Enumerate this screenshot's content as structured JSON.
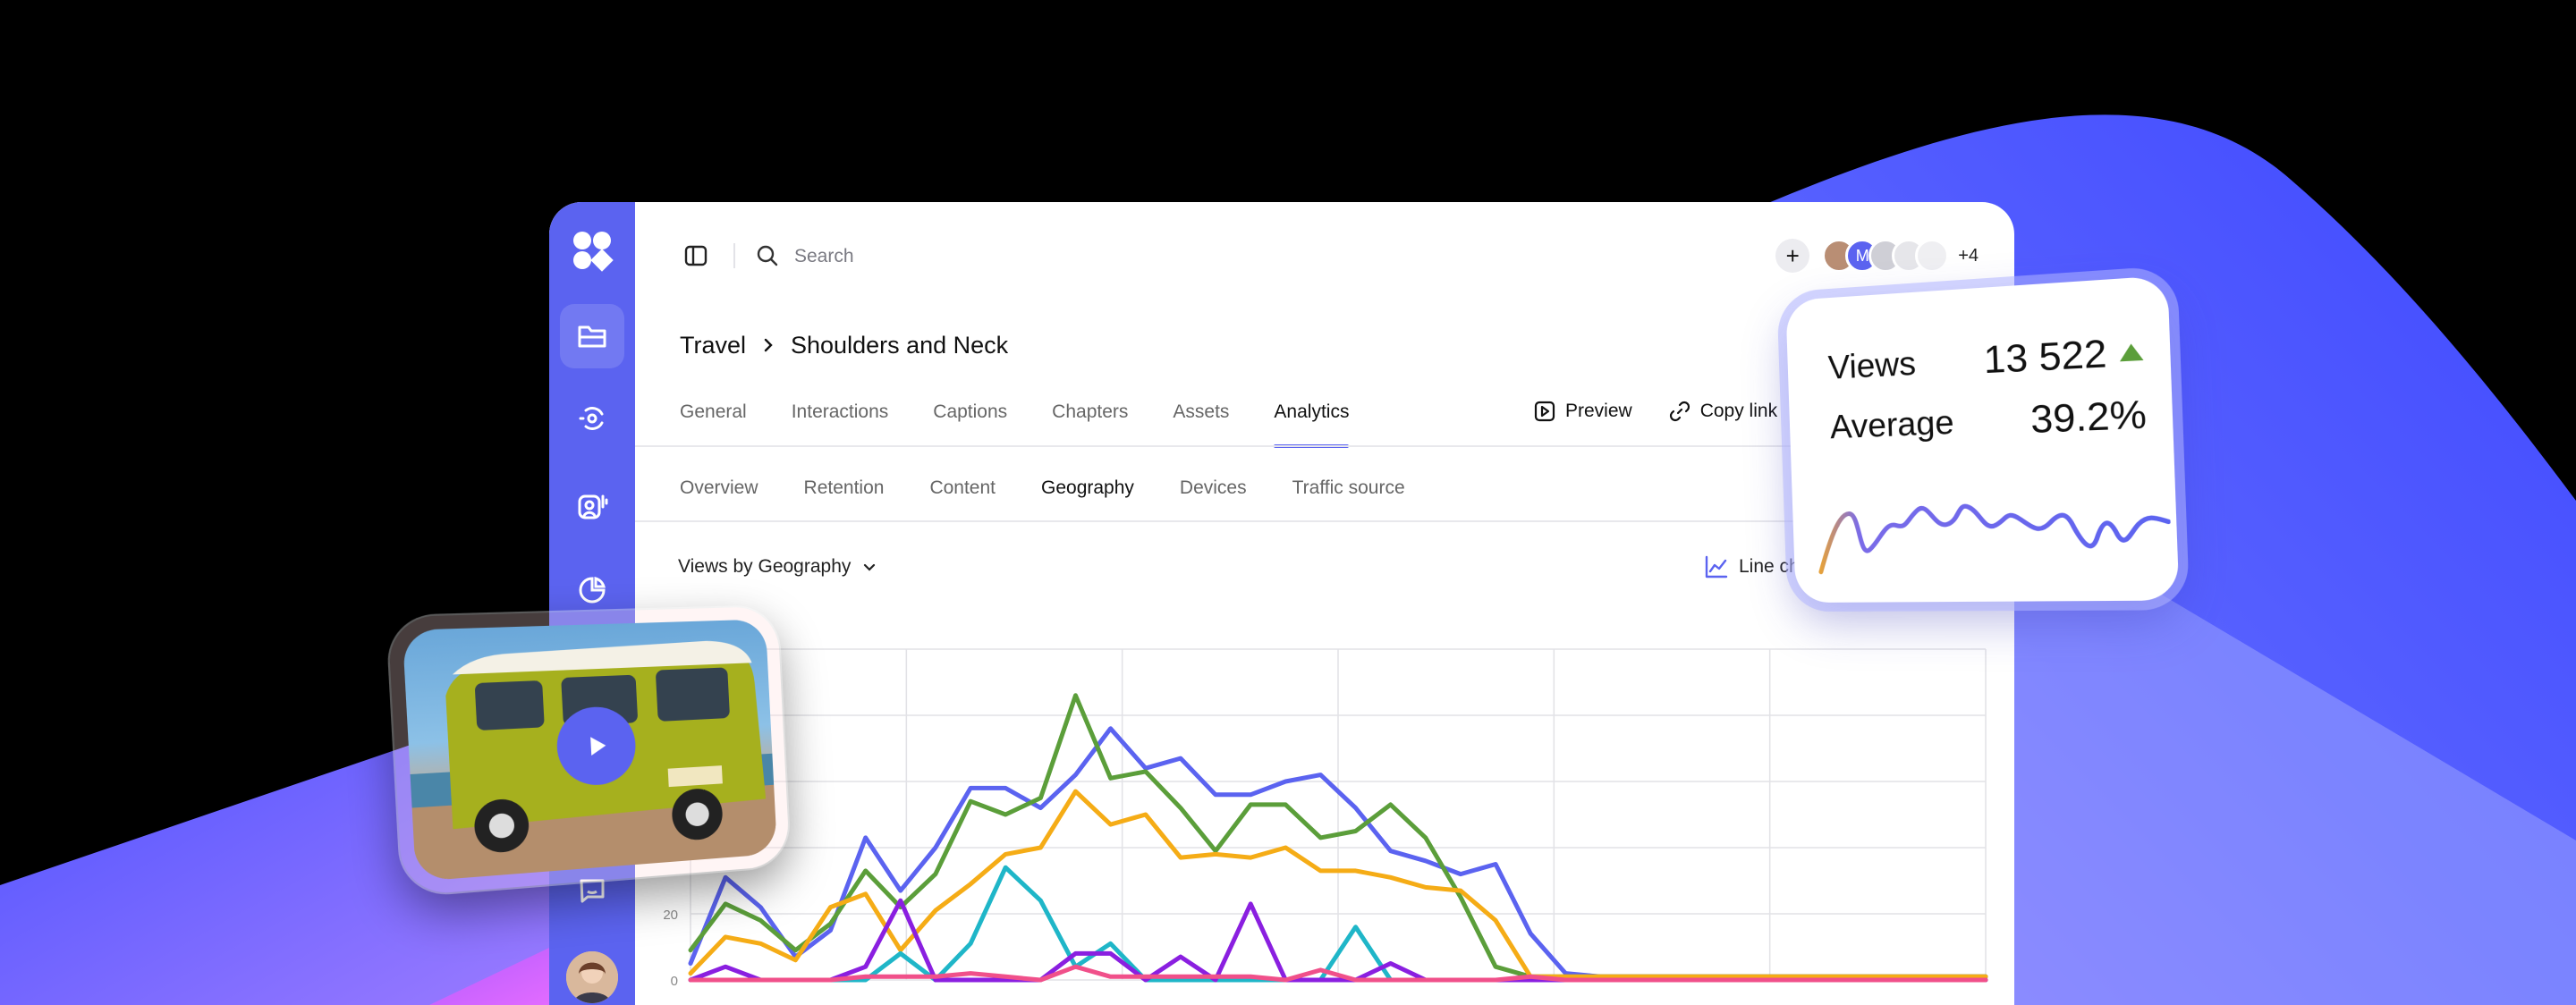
{
  "search": {
    "placeholder": "Search"
  },
  "collaborators": {
    "second_initial": "M",
    "more_count": "+4"
  },
  "breadcrumb": {
    "parent": "Travel",
    "current": "Shoulders and Neck"
  },
  "tabs": [
    "General",
    "Interactions",
    "Captions",
    "Chapters",
    "Assets",
    "Analytics"
  ],
  "active_tab": "Analytics",
  "actions": {
    "preview": "Preview",
    "copy_link": "Copy link"
  },
  "subtabs": [
    "Overview",
    "Retention",
    "Content",
    "Geography",
    "Devices",
    "Traffic source"
  ],
  "active_subtab": "Geography",
  "view_select": {
    "value": "Views by Geography"
  },
  "chart_type_label": "Line chart",
  "stats": {
    "views_label": "Views",
    "views_value": "13 522",
    "average_label": "Average",
    "average_value": "39.2%"
  },
  "colors": {
    "accent": "#5b63f0",
    "series_blue": "#5b63f0",
    "series_green": "#5b9e3a",
    "series_orange": "#f5ac16",
    "series_purple": "#8a1fe0",
    "series_cyan": "#1fb6c8",
    "series_pink": "#f0508a",
    "trend_up": "#5b9e3a"
  },
  "icons": {
    "rail": [
      "folder-icon",
      "broadcast-icon",
      "user-audio-icon",
      "pie-icon",
      "chat-icon"
    ],
    "topbar": [
      "sidebar-toggle-icon",
      "search-icon",
      "plus-icon"
    ]
  },
  "chart_data": {
    "type": "line",
    "x": [
      0,
      1,
      2,
      3,
      4,
      5,
      6,
      7,
      8,
      9,
      10,
      11,
      12,
      13,
      14,
      15,
      16,
      17,
      18,
      19,
      20,
      21,
      22,
      23,
      24,
      25,
      26,
      27,
      28,
      29,
      30,
      31,
      32,
      33,
      34,
      35,
      36,
      37
    ],
    "y_ticks": [
      0,
      20
    ],
    "ylim": [
      0,
      100
    ],
    "grid": true,
    "series": [
      {
        "color": "#5b63f0",
        "values": [
          5,
          31,
          22,
          7,
          15,
          43,
          27,
          40,
          58,
          58,
          52,
          62,
          76,
          64,
          67,
          56,
          56,
          60,
          62,
          52,
          39,
          36,
          32,
          35,
          14,
          2,
          1,
          1,
          1,
          1,
          1,
          1,
          1,
          1,
          1,
          1,
          1,
          1
        ]
      },
      {
        "color": "#5b9e3a",
        "values": [
          9,
          23,
          18,
          9,
          17,
          33,
          22,
          32,
          54,
          50,
          55,
          86,
          61,
          63,
          52,
          39,
          53,
          53,
          43,
          45,
          53,
          43,
          25,
          4,
          1,
          1,
          1,
          1,
          1,
          1,
          1,
          1,
          1,
          1,
          1,
          1,
          1,
          1
        ]
      },
      {
        "color": "#f5ac16",
        "values": [
          2,
          13,
          11,
          6,
          22,
          26,
          9,
          21,
          29,
          38,
          40,
          57,
          47,
          50,
          37,
          38,
          37,
          40,
          33,
          33,
          31,
          28,
          27,
          18,
          1,
          1,
          1,
          1,
          1,
          1,
          1,
          1,
          1,
          1,
          1,
          1,
          1,
          1
        ]
      },
      {
        "color": "#1fb6c8",
        "values": [
          0,
          0,
          0,
          0,
          0,
          0,
          8,
          0,
          11,
          34,
          24,
          4,
          11,
          0,
          0,
          0,
          0,
          0,
          0,
          16,
          0,
          0,
          0,
          0,
          0,
          0,
          0,
          0,
          0,
          0,
          0,
          0,
          0,
          0,
          0,
          0,
          0,
          0
        ]
      },
      {
        "color": "#8a1fe0",
        "values": [
          0,
          4,
          0,
          0,
          0,
          4,
          24,
          0,
          0,
          0,
          0,
          8,
          8,
          0,
          7,
          0,
          23,
          0,
          0,
          0,
          5,
          0,
          0,
          0,
          0,
          0,
          0,
          0,
          0,
          0,
          0,
          0,
          0,
          0,
          0,
          0,
          0,
          0
        ]
      },
      {
        "color": "#f0508a",
        "values": [
          0,
          0,
          0,
          0,
          0,
          1,
          1,
          1,
          2,
          1,
          0,
          4,
          1,
          1,
          1,
          1,
          1,
          0,
          3,
          0,
          0,
          0,
          0,
          0,
          1,
          0,
          0,
          0,
          0,
          0,
          0,
          0,
          0,
          0,
          0,
          0,
          0,
          0
        ]
      }
    ]
  }
}
